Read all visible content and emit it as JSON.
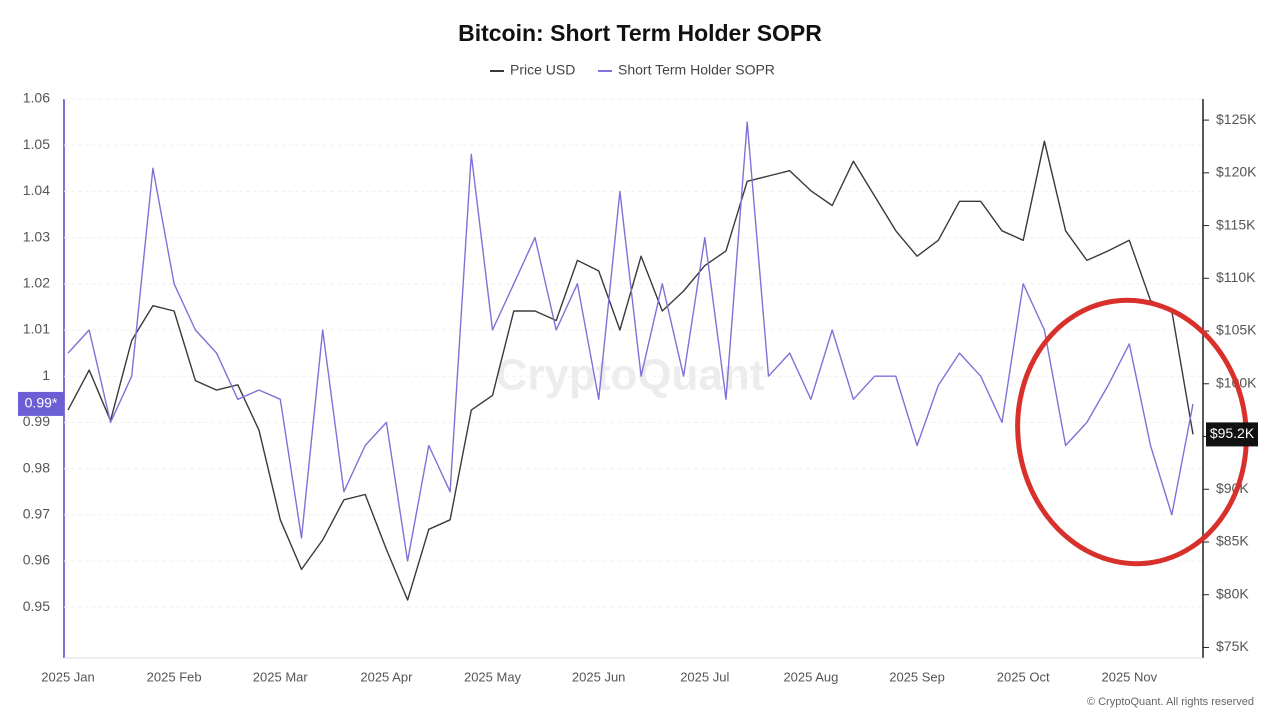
{
  "chart_data": {
    "type": "line",
    "title": "Bitcoin: Short Term Holder SOPR",
    "watermark": "CryptoQuant",
    "footer": "© CryptoQuant. All rights reserved",
    "categories": [
      "2025 Jan",
      null,
      null,
      null,
      null,
      "2025 Feb",
      null,
      null,
      null,
      null,
      "2025 Mar",
      null,
      null,
      null,
      null,
      "2025 Apr",
      null,
      null,
      null,
      null,
      "2025 May",
      null,
      null,
      null,
      null,
      "2025 Jun",
      null,
      null,
      null,
      null,
      "2025 Jul",
      null,
      null,
      null,
      null,
      "2025 Aug",
      null,
      null,
      null,
      null,
      "2025 Sep",
      null,
      null,
      null,
      null,
      "2025 Oct",
      null,
      null,
      null,
      null,
      "2025 Nov",
      null,
      null,
      null
    ],
    "series": [
      {
        "name": "Price USD",
        "color": "#3a3a3a",
        "axis": "y2",
        "values": [
          97500,
          101300,
          96500,
          104100,
          107400,
          106900,
          100300,
          99400,
          99900,
          95600,
          87100,
          82400,
          85200,
          89000,
          89500,
          84300,
          79500,
          86200,
          87100,
          97500,
          98900,
          106900,
          106900,
          106000,
          111700,
          110700,
          105100,
          112100,
          106900,
          108800,
          111200,
          112600,
          119200,
          119700,
          120200,
          118300,
          116900,
          121100,
          117800,
          114500,
          112100,
          113600,
          117300,
          117300,
          114500,
          113600,
          123000,
          114500,
          111700,
          112600,
          113600,
          107900,
          106900,
          95200
        ]
      },
      {
        "name": "Short Term Holder SOPR",
        "color": "#7e72d8",
        "values": [
          1.005,
          1.01,
          0.99,
          1.0,
          1.045,
          1.02,
          1.01,
          1.005,
          0.995,
          0.997,
          0.995,
          0.965,
          1.01,
          0.975,
          0.985,
          0.99,
          0.96,
          0.985,
          0.975,
          1.048,
          1.01,
          1.02,
          1.03,
          1.01,
          1.02,
          0.995,
          1.04,
          1.0,
          1.02,
          1.0,
          1.03,
          0.995,
          1.055,
          1.0,
          1.005,
          0.995,
          1.01,
          0.995,
          1.0,
          1.0,
          0.985,
          0.998,
          1.005,
          1.0,
          0.99,
          1.02,
          1.01,
          0.985,
          0.99,
          0.998,
          1.007,
          0.985,
          0.97,
          0.994
        ]
      }
    ],
    "ylim": [
      0.939,
      1.06
    ],
    "yticks": [
      0.95,
      0.96,
      0.97,
      0.98,
      0.99,
      1,
      1.01,
      1.02,
      1.03,
      1.04,
      1.05,
      1.06
    ],
    "y2lim": [
      74000,
      127000
    ],
    "y2ticks": [
      {
        "value": 75000,
        "label": "$75K"
      },
      {
        "value": 80000,
        "label": "$80K"
      },
      {
        "value": 85000,
        "label": "$85K"
      },
      {
        "value": 90000,
        "label": "$90K"
      },
      {
        "value": 95000,
        "label": "$95K"
      },
      {
        "value": 100000,
        "label": "$100K"
      },
      {
        "value": 105000,
        "label": "$105K"
      },
      {
        "value": 110000,
        "label": "$110K"
      },
      {
        "value": 115000,
        "label": "$115K"
      },
      {
        "value": 120000,
        "label": "$120K"
      },
      {
        "value": 125000,
        "label": "$125K"
      }
    ],
    "sopr_badge": {
      "value": 0.994,
      "label": "0.99*"
    },
    "price_badge": {
      "value": 95200,
      "label": "$95.2K"
    },
    "grid": true
  }
}
